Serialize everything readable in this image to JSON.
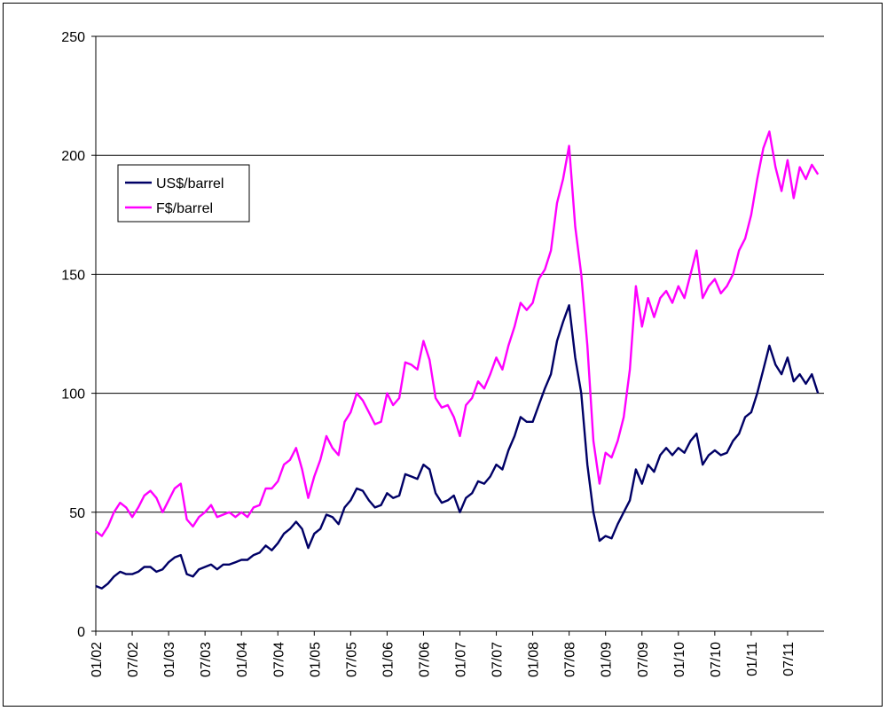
{
  "chart_data": {
    "type": "line",
    "title": "",
    "xlabel": "",
    "ylabel": "",
    "ylim": [
      0,
      250
    ],
    "yticks": [
      0,
      50,
      100,
      150,
      200,
      250
    ],
    "xlim": [
      "2002-01",
      "2011-12"
    ],
    "xtick_labels": [
      "01/02",
      "07/02",
      "01/03",
      "07/03",
      "01/04",
      "07/04",
      "01/05",
      "07/05",
      "01/06",
      "07/06",
      "01/07",
      "07/07",
      "01/08",
      "07/08",
      "01/09",
      "07/09",
      "01/10",
      "07/10",
      "01/11",
      "07/11"
    ],
    "grid": "horizontal",
    "legend_position": "upper-left",
    "series": [
      {
        "name": "US$/barrel",
        "color": "#000066",
        "points": [
          [
            "2002-01",
            19
          ],
          [
            "2002-02",
            18
          ],
          [
            "2002-03",
            20
          ],
          [
            "2002-04",
            23
          ],
          [
            "2002-05",
            25
          ],
          [
            "2002-06",
            24
          ],
          [
            "2002-07",
            24
          ],
          [
            "2002-08",
            25
          ],
          [
            "2002-09",
            27
          ],
          [
            "2002-10",
            27
          ],
          [
            "2002-11",
            25
          ],
          [
            "2002-12",
            26
          ],
          [
            "2003-01",
            29
          ],
          [
            "2003-02",
            31
          ],
          [
            "2003-03",
            32
          ],
          [
            "2003-04",
            24
          ],
          [
            "2003-05",
            23
          ],
          [
            "2003-06",
            26
          ],
          [
            "2003-07",
            27
          ],
          [
            "2003-08",
            28
          ],
          [
            "2003-09",
            26
          ],
          [
            "2003-10",
            28
          ],
          [
            "2003-11",
            28
          ],
          [
            "2003-12",
            29
          ],
          [
            "2004-01",
            30
          ],
          [
            "2004-02",
            30
          ],
          [
            "2004-03",
            32
          ],
          [
            "2004-04",
            33
          ],
          [
            "2004-05",
            36
          ],
          [
            "2004-06",
            34
          ],
          [
            "2004-07",
            37
          ],
          [
            "2004-08",
            41
          ],
          [
            "2004-09",
            43
          ],
          [
            "2004-10",
            46
          ],
          [
            "2004-11",
            43
          ],
          [
            "2004-12",
            35
          ],
          [
            "2005-01",
            41
          ],
          [
            "2005-02",
            43
          ],
          [
            "2005-03",
            49
          ],
          [
            "2005-04",
            48
          ],
          [
            "2005-05",
            45
          ],
          [
            "2005-06",
            52
          ],
          [
            "2005-07",
            55
          ],
          [
            "2005-08",
            60
          ],
          [
            "2005-09",
            59
          ],
          [
            "2005-10",
            55
          ],
          [
            "2005-11",
            52
          ],
          [
            "2005-12",
            53
          ],
          [
            "2006-01",
            58
          ],
          [
            "2006-02",
            56
          ],
          [
            "2006-03",
            57
          ],
          [
            "2006-04",
            66
          ],
          [
            "2006-05",
            65
          ],
          [
            "2006-06",
            64
          ],
          [
            "2006-07",
            70
          ],
          [
            "2006-08",
            68
          ],
          [
            "2006-09",
            58
          ],
          [
            "2006-10",
            54
          ],
          [
            "2006-11",
            55
          ],
          [
            "2006-12",
            57
          ],
          [
            "2007-01",
            50
          ],
          [
            "2007-02",
            56
          ],
          [
            "2007-03",
            58
          ],
          [
            "2007-04",
            63
          ],
          [
            "2007-05",
            62
          ],
          [
            "2007-06",
            65
          ],
          [
            "2007-07",
            70
          ],
          [
            "2007-08",
            68
          ],
          [
            "2007-09",
            76
          ],
          [
            "2007-10",
            82
          ],
          [
            "2007-11",
            90
          ],
          [
            "2007-12",
            88
          ],
          [
            "2008-01",
            88
          ],
          [
            "2008-02",
            95
          ],
          [
            "2008-03",
            102
          ],
          [
            "2008-04",
            108
          ],
          [
            "2008-05",
            122
          ],
          [
            "2008-06",
            130
          ],
          [
            "2008-07",
            137
          ],
          [
            "2008-08",
            115
          ],
          [
            "2008-09",
            100
          ],
          [
            "2008-10",
            70
          ],
          [
            "2008-11",
            50
          ],
          [
            "2008-12",
            38
          ],
          [
            "2009-01",
            40
          ],
          [
            "2009-02",
            39
          ],
          [
            "2009-03",
            45
          ],
          [
            "2009-04",
            50
          ],
          [
            "2009-05",
            55
          ],
          [
            "2009-06",
            68
          ],
          [
            "2009-07",
            62
          ],
          [
            "2009-08",
            70
          ],
          [
            "2009-09",
            67
          ],
          [
            "2009-10",
            74
          ],
          [
            "2009-11",
            77
          ],
          [
            "2009-12",
            74
          ],
          [
            "2010-01",
            77
          ],
          [
            "2010-02",
            75
          ],
          [
            "2010-03",
            80
          ],
          [
            "2010-04",
            83
          ],
          [
            "2010-05",
            70
          ],
          [
            "2010-06",
            74
          ],
          [
            "2010-07",
            76
          ],
          [
            "2010-08",
            74
          ],
          [
            "2010-09",
            75
          ],
          [
            "2010-10",
            80
          ],
          [
            "2010-11",
            83
          ],
          [
            "2010-12",
            90
          ],
          [
            "2011-01",
            92
          ],
          [
            "2011-02",
            100
          ],
          [
            "2011-03",
            110
          ],
          [
            "2011-04",
            120
          ],
          [
            "2011-05",
            112
          ],
          [
            "2011-06",
            108
          ],
          [
            "2011-07",
            115
          ],
          [
            "2011-08",
            105
          ],
          [
            "2011-09",
            108
          ],
          [
            "2011-10",
            104
          ],
          [
            "2011-11",
            108
          ],
          [
            "2011-12",
            100
          ]
        ]
      },
      {
        "name": "F$/barrel",
        "color": "#ff00ff",
        "points": [
          [
            "2002-01",
            42
          ],
          [
            "2002-02",
            40
          ],
          [
            "2002-03",
            44
          ],
          [
            "2002-04",
            50
          ],
          [
            "2002-05",
            54
          ],
          [
            "2002-06",
            52
          ],
          [
            "2002-07",
            48
          ],
          [
            "2002-08",
            52
          ],
          [
            "2002-09",
            57
          ],
          [
            "2002-10",
            59
          ],
          [
            "2002-11",
            56
          ],
          [
            "2002-12",
            50
          ],
          [
            "2003-01",
            55
          ],
          [
            "2003-02",
            60
          ],
          [
            "2003-03",
            62
          ],
          [
            "2003-04",
            47
          ],
          [
            "2003-05",
            44
          ],
          [
            "2003-06",
            48
          ],
          [
            "2003-07",
            50
          ],
          [
            "2003-08",
            53
          ],
          [
            "2003-09",
            48
          ],
          [
            "2003-10",
            49
          ],
          [
            "2003-11",
            50
          ],
          [
            "2003-12",
            48
          ],
          [
            "2004-01",
            50
          ],
          [
            "2004-02",
            48
          ],
          [
            "2004-03",
            52
          ],
          [
            "2004-04",
            53
          ],
          [
            "2004-05",
            60
          ],
          [
            "2004-06",
            60
          ],
          [
            "2004-07",
            63
          ],
          [
            "2004-08",
            70
          ],
          [
            "2004-09",
            72
          ],
          [
            "2004-10",
            77
          ],
          [
            "2004-11",
            68
          ],
          [
            "2004-12",
            56
          ],
          [
            "2005-01",
            65
          ],
          [
            "2005-02",
            72
          ],
          [
            "2005-03",
            82
          ],
          [
            "2005-04",
            77
          ],
          [
            "2005-05",
            74
          ],
          [
            "2005-06",
            88
          ],
          [
            "2005-07",
            92
          ],
          [
            "2005-08",
            100
          ],
          [
            "2005-09",
            97
          ],
          [
            "2005-10",
            92
          ],
          [
            "2005-11",
            87
          ],
          [
            "2005-12",
            88
          ],
          [
            "2006-01",
            100
          ],
          [
            "2006-02",
            95
          ],
          [
            "2006-03",
            98
          ],
          [
            "2006-04",
            113
          ],
          [
            "2006-05",
            112
          ],
          [
            "2006-06",
            110
          ],
          [
            "2006-07",
            122
          ],
          [
            "2006-08",
            114
          ],
          [
            "2006-09",
            98
          ],
          [
            "2006-10",
            94
          ],
          [
            "2006-11",
            95
          ],
          [
            "2006-12",
            90
          ],
          [
            "2007-01",
            82
          ],
          [
            "2007-02",
            95
          ],
          [
            "2007-03",
            98
          ],
          [
            "2007-04",
            105
          ],
          [
            "2007-05",
            102
          ],
          [
            "2007-06",
            108
          ],
          [
            "2007-07",
            115
          ],
          [
            "2007-08",
            110
          ],
          [
            "2007-09",
            120
          ],
          [
            "2007-10",
            128
          ],
          [
            "2007-11",
            138
          ],
          [
            "2007-12",
            135
          ],
          [
            "2008-01",
            138
          ],
          [
            "2008-02",
            148
          ],
          [
            "2008-03",
            152
          ],
          [
            "2008-04",
            160
          ],
          [
            "2008-05",
            180
          ],
          [
            "2008-06",
            190
          ],
          [
            "2008-07",
            204
          ],
          [
            "2008-08",
            170
          ],
          [
            "2008-09",
            150
          ],
          [
            "2008-10",
            120
          ],
          [
            "2008-11",
            80
          ],
          [
            "2008-12",
            62
          ],
          [
            "2009-01",
            75
          ],
          [
            "2009-02",
            73
          ],
          [
            "2009-03",
            80
          ],
          [
            "2009-04",
            90
          ],
          [
            "2009-05",
            110
          ],
          [
            "2009-06",
            145
          ],
          [
            "2009-07",
            128
          ],
          [
            "2009-08",
            140
          ],
          [
            "2009-09",
            132
          ],
          [
            "2009-10",
            140
          ],
          [
            "2009-11",
            143
          ],
          [
            "2009-12",
            138
          ],
          [
            "2010-01",
            145
          ],
          [
            "2010-02",
            140
          ],
          [
            "2010-03",
            150
          ],
          [
            "2010-04",
            160
          ],
          [
            "2010-05",
            140
          ],
          [
            "2010-06",
            145
          ],
          [
            "2010-07",
            148
          ],
          [
            "2010-08",
            142
          ],
          [
            "2010-09",
            145
          ],
          [
            "2010-10",
            150
          ],
          [
            "2010-11",
            160
          ],
          [
            "2010-12",
            165
          ],
          [
            "2011-01",
            175
          ],
          [
            "2011-02",
            190
          ],
          [
            "2011-03",
            203
          ],
          [
            "2011-04",
            210
          ],
          [
            "2011-05",
            195
          ],
          [
            "2011-06",
            185
          ],
          [
            "2011-07",
            198
          ],
          [
            "2011-08",
            182
          ],
          [
            "2011-09",
            195
          ],
          [
            "2011-10",
            190
          ],
          [
            "2011-11",
            196
          ],
          [
            "2011-12",
            192
          ]
        ]
      }
    ]
  }
}
